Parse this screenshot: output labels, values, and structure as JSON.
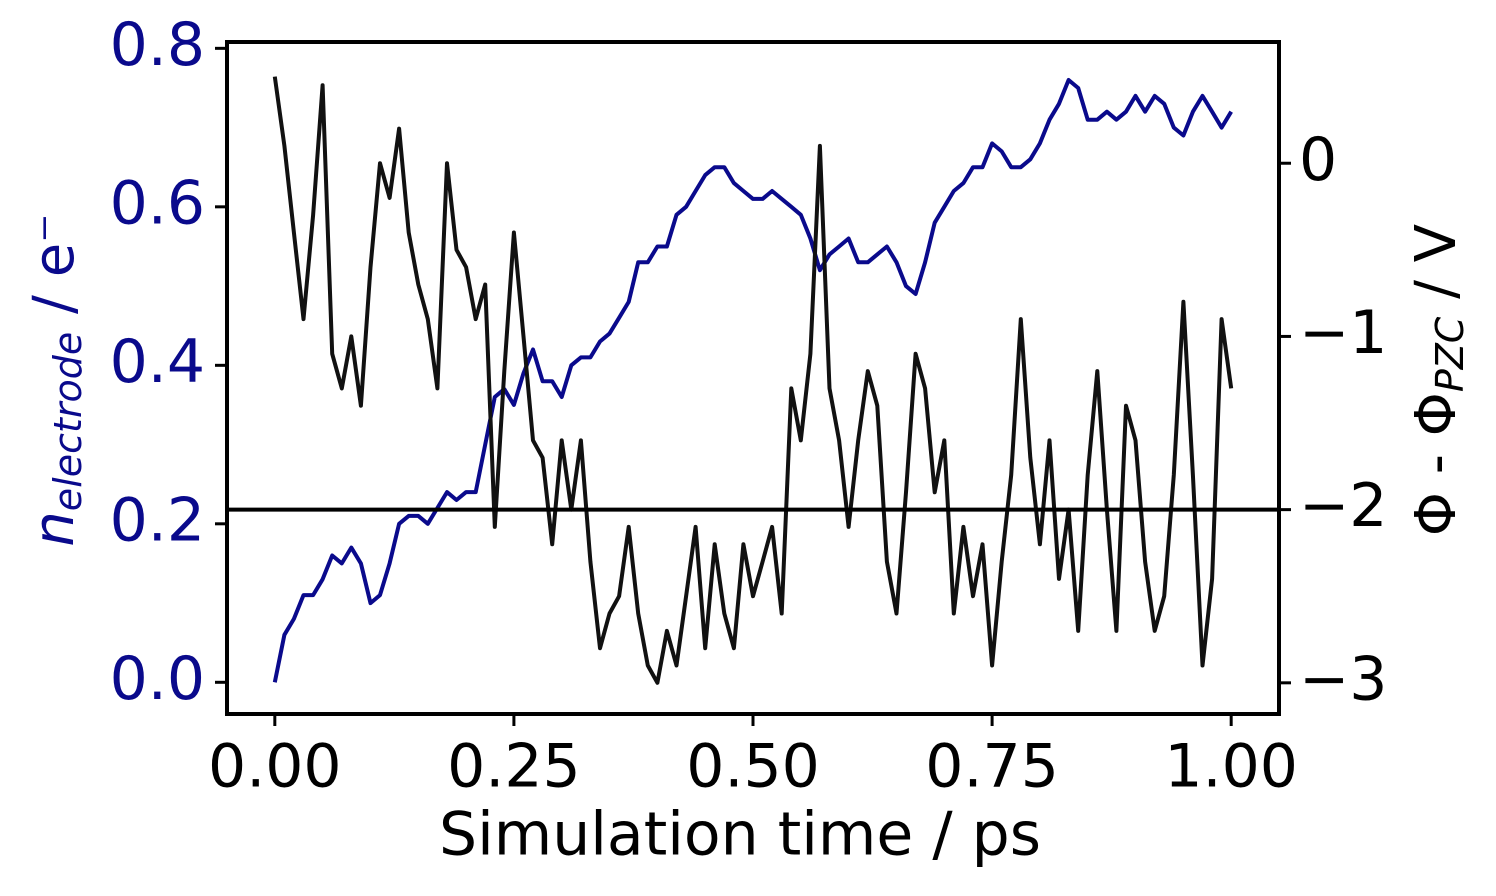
{
  "chart_data": {
    "type": "line",
    "x_label": "Simulation time / ps",
    "y_label": {
      "main": "n",
      "sub": "electrode",
      "rest": " / e⁻"
    },
    "y2_label": {
      "main": "Φ - Φ",
      "sub": "PZC",
      "rest": " / V"
    },
    "x": [
      0,
      0.01,
      0.02,
      0.03,
      0.04,
      0.05,
      0.06,
      0.07,
      0.08,
      0.09,
      0.1,
      0.11,
      0.12,
      0.13,
      0.14,
      0.15,
      0.16,
      0.17,
      0.18,
      0.19,
      0.2,
      0.21,
      0.22,
      0.23,
      0.24,
      0.25,
      0.26,
      0.27,
      0.28,
      0.29,
      0.3,
      0.31,
      0.32,
      0.33,
      0.34,
      0.35,
      0.36,
      0.37,
      0.38,
      0.39,
      0.4,
      0.41,
      0.42,
      0.43,
      0.44,
      0.45,
      0.46,
      0.47,
      0.48,
      0.49,
      0.5,
      0.51,
      0.52,
      0.53,
      0.54,
      0.55,
      0.56,
      0.57,
      0.58,
      0.59,
      0.6,
      0.61,
      0.62,
      0.63,
      0.64,
      0.65,
      0.66,
      0.67,
      0.68,
      0.69,
      0.7,
      0.71,
      0.72,
      0.73,
      0.74,
      0.75,
      0.76,
      0.77,
      0.78,
      0.79,
      0.8,
      0.81,
      0.82,
      0.83,
      0.84,
      0.85,
      0.86,
      0.87,
      0.88,
      0.89,
      0.9,
      0.91,
      0.92,
      0.93,
      0.94,
      0.95,
      0.96,
      0.97,
      0.98,
      0.99,
      1
    ],
    "series": [
      {
        "color": "#0a0a8c",
        "axis": "y",
        "values": [
          0,
          0.06,
          0.08,
          0.11,
          0.11,
          0.13,
          0.16,
          0.15,
          0.17,
          0.15,
          0.1,
          0.11,
          0.15,
          0.2,
          0.21,
          0.21,
          0.2,
          0.22,
          0.24,
          0.23,
          0.24,
          0.24,
          0.3,
          0.36,
          0.37,
          0.35,
          0.39,
          0.42,
          0.38,
          0.38,
          0.36,
          0.4,
          0.41,
          0.41,
          0.43,
          0.44,
          0.46,
          0.48,
          0.53,
          0.53,
          0.55,
          0.55,
          0.59,
          0.6,
          0.62,
          0.64,
          0.65,
          0.65,
          0.63,
          0.62,
          0.61,
          0.61,
          0.62,
          0.61,
          0.6,
          0.59,
          0.56,
          0.52,
          0.54,
          0.55,
          0.56,
          0.53,
          0.53,
          0.54,
          0.55,
          0.53,
          0.5,
          0.49,
          0.53,
          0.58,
          0.6,
          0.62,
          0.63,
          0.65,
          0.65,
          0.68,
          0.67,
          0.65,
          0.65,
          0.66,
          0.68,
          0.71,
          0.73,
          0.76,
          0.75,
          0.71,
          0.71,
          0.72,
          0.71,
          0.72,
          0.74,
          0.72,
          0.74,
          0.73,
          0.7,
          0.69,
          0.72,
          0.74,
          0.72,
          0.7,
          0.72
        ]
      },
      {
        "color": "#111111",
        "axis": "y2",
        "values": [
          0.5,
          0.1,
          -0.4,
          -0.9,
          -0.3,
          0.45,
          -1.1,
          -1.3,
          -1.0,
          -1.4,
          -0.6,
          0.0,
          -0.2,
          0.2,
          -0.4,
          -0.7,
          -0.9,
          -1.3,
          0.0,
          -0.5,
          -0.6,
          -0.9,
          -0.7,
          -2.1,
          -1.2,
          -0.4,
          -1.0,
          -1.6,
          -1.7,
          -2.2,
          -1.6,
          -2.0,
          -1.6,
          -2.3,
          -2.8,
          -2.6,
          -2.5,
          -2.1,
          -2.6,
          -2.9,
          -3.0,
          -2.7,
          -2.9,
          -2.5,
          -2.1,
          -2.8,
          -2.2,
          -2.6,
          -2.8,
          -2.2,
          -2.5,
          -2.3,
          -2.1,
          -2.6,
          -1.3,
          -1.6,
          -1.1,
          0.1,
          -1.3,
          -1.6,
          -2.1,
          -1.6,
          -1.2,
          -1.4,
          -2.3,
          -2.6,
          -1.9,
          -1.1,
          -1.3,
          -1.9,
          -1.6,
          -2.6,
          -2.1,
          -2.5,
          -2.2,
          -2.9,
          -2.3,
          -1.8,
          -0.9,
          -1.7,
          -2.2,
          -1.6,
          -2.4,
          -2.0,
          -2.7,
          -1.8,
          -1.2,
          -2.0,
          -2.7,
          -1.4,
          -1.6,
          -2.3,
          -2.7,
          -2.5,
          -1.8,
          -0.8,
          -1.8,
          -2.9,
          -2.4,
          -0.9,
          -1.3
        ]
      }
    ],
    "hline": {
      "value": -2,
      "axis": "y2",
      "color": "#000000"
    },
    "xlim": [
      -0.05,
      1.05
    ],
    "xticks": [
      {
        "value": 0,
        "label": "0.00"
      },
      0.25,
      {
        "value": 0.5,
        "label": "0.50"
      },
      0.75,
      {
        "value": 1,
        "label": "1.00"
      }
    ],
    "ylim": [
      -0.04,
      0.808
    ],
    "yticks": [
      {
        "value": 0,
        "label": "0.0"
      },
      0.2,
      0.4,
      0.6,
      0.8
    ],
    "y_color": "#0a0a8c",
    "y2lim": [
      -3.18,
      0.7
    ],
    "y2ticks": [
      {
        "value": -3,
        "label": "−3"
      },
      {
        "value": -2,
        "label": "−2"
      },
      {
        "value": -1,
        "label": "−1"
      },
      0
    ]
  }
}
